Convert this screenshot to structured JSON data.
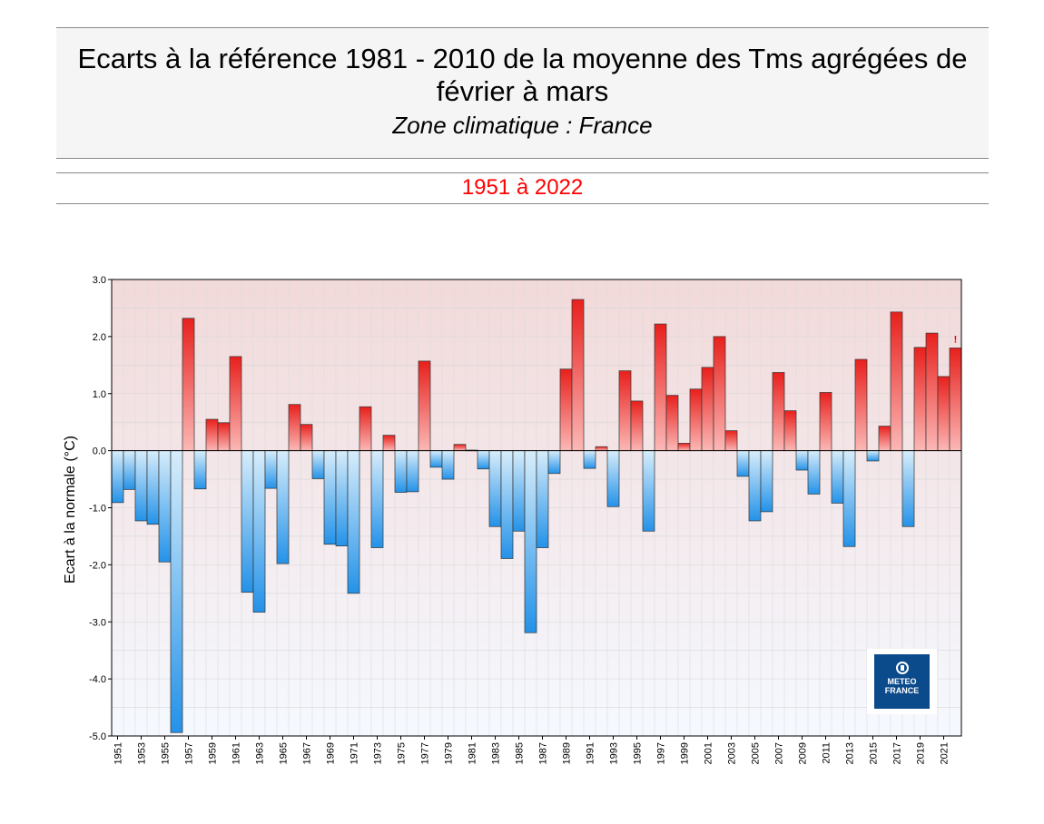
{
  "header": {
    "title_line1": "Ecarts à la référence 1981 - 2010 de la moyenne des Tms agrégées de",
    "title_line2": "février à mars",
    "subtitle": "Zone climatique : France",
    "period": "1951 à 2022"
  },
  "logo": {
    "line1": "METEO",
    "line2": "FRANCE",
    "icon": "meteo-france-logo-icon"
  },
  "colors": {
    "positive_dark": "#e8201c",
    "positive_light": "#fbb8b6",
    "negative_dark": "#2492e8",
    "negative_light": "#d7edfb",
    "plot_bg_top": "#f2d9d9",
    "plot_bg_bottom": "#f5f9ff",
    "period_text": "#ff0000"
  },
  "chart_data": {
    "type": "bar",
    "ylabel": "Ecart à la normale (°C)",
    "xlabel": "",
    "ylim": [
      -5.0,
      3.0
    ],
    "yticks": [
      3.0,
      2.0,
      1.0,
      0.0,
      -1.0,
      -2.0,
      -3.0,
      -4.0,
      -5.0
    ],
    "ytick_labels": [
      "3.0",
      "2.0",
      "1.0",
      "0.0",
      "-1.0",
      "-2.0",
      "-3.0",
      "-4.0",
      "-5.0"
    ],
    "grid": true,
    "incomplete_marker": "!",
    "incomplete_year": "2022",
    "categories": [
      "1951",
      "1952",
      "1953",
      "1954",
      "1955",
      "1956",
      "1957",
      "1958",
      "1959",
      "1960",
      "1961",
      "1962",
      "1963",
      "1964",
      "1965",
      "1966",
      "1967",
      "1968",
      "1969",
      "1970",
      "1971",
      "1972",
      "1973",
      "1974",
      "1975",
      "1976",
      "1977",
      "1978",
      "1979",
      "1980",
      "1981",
      "1982",
      "1983",
      "1984",
      "1985",
      "1986",
      "1987",
      "1988",
      "1989",
      "1990",
      "1991",
      "1992",
      "1993",
      "1994",
      "1995",
      "1996",
      "1997",
      "1998",
      "1999",
      "2000",
      "2001",
      "2002",
      "2003",
      "2004",
      "2005",
      "2006",
      "2007",
      "2008",
      "2009",
      "2010",
      "2011",
      "2012",
      "2013",
      "2014",
      "2015",
      "2016",
      "2017",
      "2018",
      "2019",
      "2020",
      "2021",
      "2022"
    ],
    "tick_labels": [
      "1951",
      "1953",
      "1955",
      "1957",
      "1959",
      "1961",
      "1963",
      "1965",
      "1967",
      "1969",
      "1971",
      "1973",
      "1975",
      "1977",
      "1979",
      "1981",
      "1983",
      "1985",
      "1987",
      "1989",
      "1991",
      "1993",
      "1995",
      "1997",
      "1999",
      "2001",
      "2003",
      "2005",
      "2007",
      "2009",
      "2011",
      "2013",
      "2015",
      "2017",
      "2019",
      "2021"
    ],
    "values": [
      -0.91,
      -0.68,
      -1.23,
      -1.29,
      -1.95,
      -4.94,
      2.32,
      -0.67,
      0.55,
      0.49,
      1.65,
      -2.48,
      -2.83,
      -0.66,
      -1.98,
      0.81,
      0.46,
      -0.49,
      -1.64,
      -1.67,
      -2.5,
      0.77,
      -1.7,
      0.27,
      -0.73,
      -0.72,
      1.57,
      -0.29,
      -0.5,
      0.11,
      0.01,
      -0.32,
      -1.33,
      -1.89,
      -1.41,
      -3.19,
      -1.7,
      -0.4,
      1.43,
      2.65,
      -0.31,
      0.07,
      -0.98,
      1.4,
      0.87,
      -1.41,
      2.22,
      0.97,
      0.13,
      1.08,
      1.46,
      2.0,
      0.35,
      -0.45,
      -1.23,
      -1.07,
      1.37,
      0.7,
      -0.34,
      -0.76,
      1.02,
      -0.92,
      -1.68,
      1.6,
      -0.18,
      0.43,
      2.43,
      -1.33,
      1.81,
      2.06,
      1.3,
      1.8
    ]
  }
}
